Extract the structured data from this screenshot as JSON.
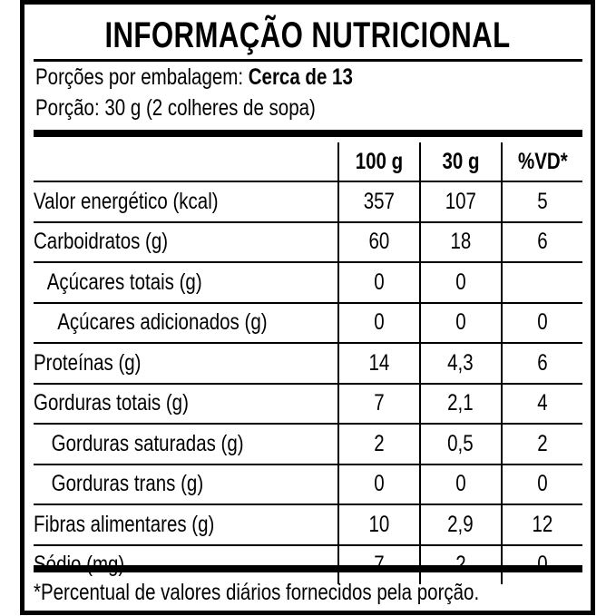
{
  "title": "INFORMAÇÃO NUTRICIONAL",
  "servings_label": "Porções por embalagem: ",
  "servings_value": "Cerca de 13",
  "portion": "Porção: 30 g (2 colheres de sopa)",
  "columns": [
    "100 g",
    "30 g",
    "%VD*"
  ],
  "rows": [
    {
      "label": "Valor energético (kcal)",
      "v100": "357",
      "v30": "107",
      "vd": "5"
    },
    {
      "label": "Carboidratos (g)",
      "v100": "60",
      "v30": "18",
      "vd": "6"
    },
    {
      "label": "Açúcares totais (g)",
      "v100": "0",
      "v30": "0",
      "vd": ""
    },
    {
      "label": "Açúcares adicionados (g)",
      "v100": "0",
      "v30": "0",
      "vd": "0"
    },
    {
      "label": "Proteínas (g)",
      "v100": "14",
      "v30": "4,3",
      "vd": "6"
    },
    {
      "label": "Gorduras totais (g)",
      "v100": "7",
      "v30": "2,1",
      "vd": "4"
    },
    {
      "label": "Gorduras saturadas (g)",
      "v100": "2",
      "v30": "0,5",
      "vd": "2"
    },
    {
      "label": "Gorduras trans (g)",
      "v100": "0",
      "v30": "0",
      "vd": "0"
    },
    {
      "label": "Fibras alimentares (g)",
      "v100": "10",
      "v30": "2,9",
      "vd": "12"
    },
    {
      "label": "Sódio (mg)",
      "v100": "7",
      "v30": "2",
      "vd": "0"
    }
  ],
  "footnote": "*Percentual de valores diários fornecidos pela porção."
}
